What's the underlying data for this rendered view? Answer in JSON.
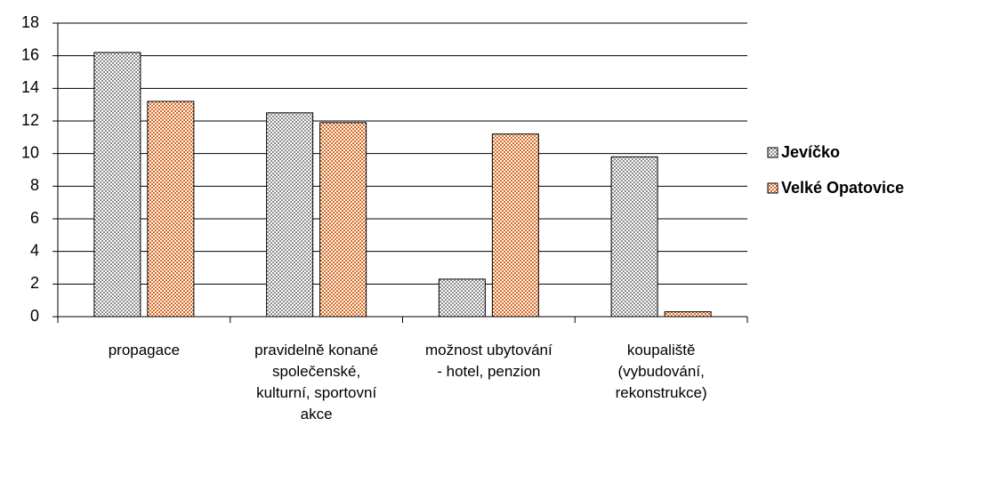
{
  "chart_data": {
    "type": "bar",
    "categories": [
      "propagace",
      "pravidelně konané společenské, kulturní, sportovní akce",
      "možnost ubytování - hotel, penzion",
      "koupaliště (vybudování, rekonstrukce)"
    ],
    "series": [
      {
        "name": "Jevíčko",
        "color": "#8c8c8c",
        "values": [
          16.2,
          12.5,
          2.3,
          9.8
        ]
      },
      {
        "name": "Velké Opatovice",
        "color": "#d8661c",
        "values": [
          13.2,
          11.9,
          11.2,
          0.3
        ]
      }
    ],
    "ylim": [
      0,
      18
    ],
    "yticks": [
      0,
      2,
      4,
      6,
      8,
      10,
      12,
      14,
      16,
      18
    ],
    "grid": true,
    "legend": "right"
  }
}
